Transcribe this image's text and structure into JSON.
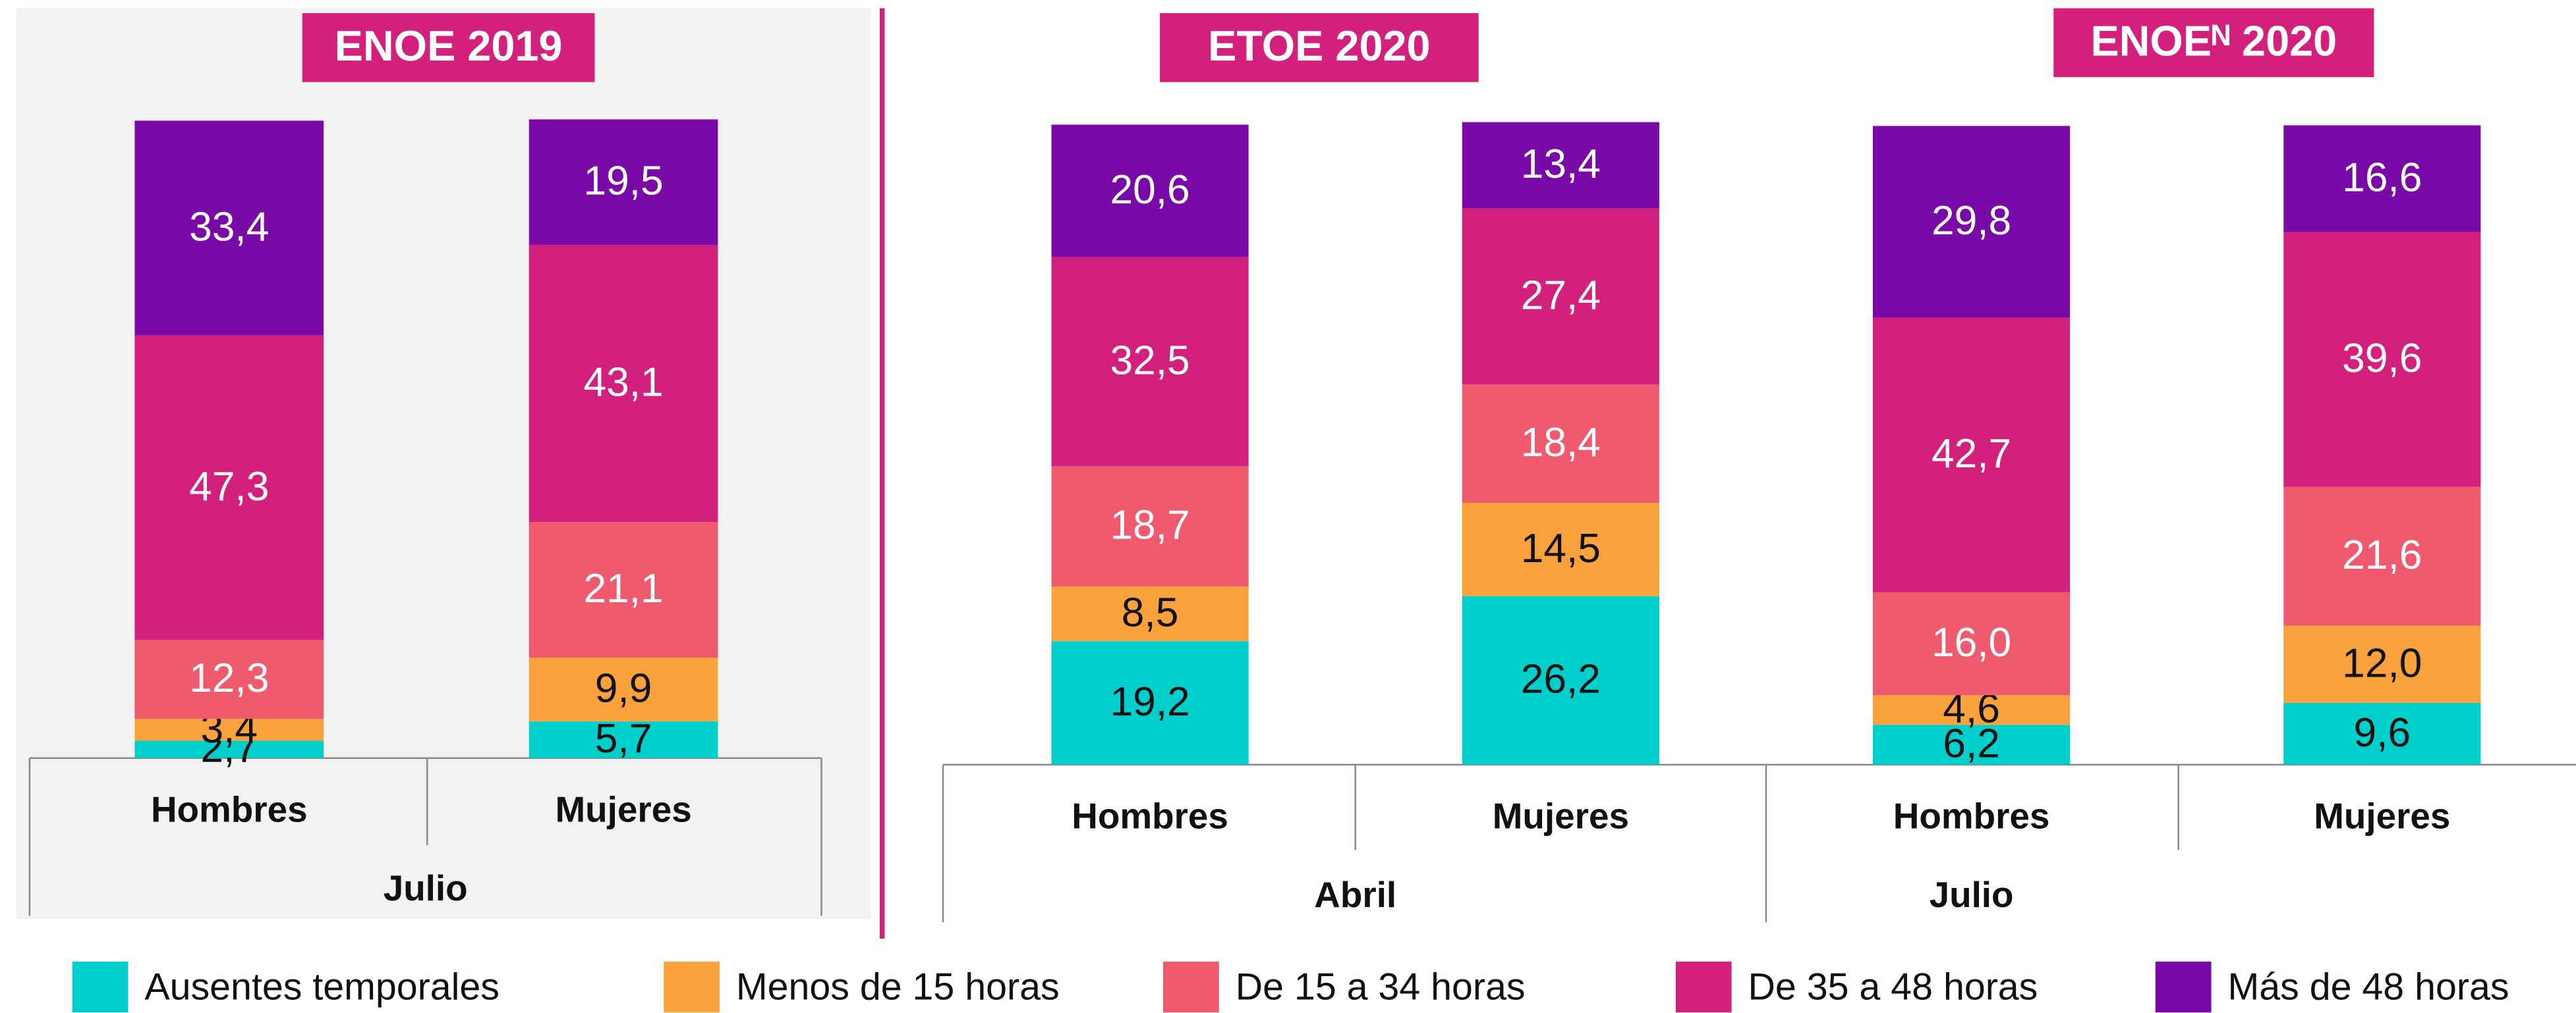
{
  "chart_data": {
    "type": "bar",
    "stacked": true,
    "ylim": [
      0,
      100
    ],
    "series": [
      {
        "name": "Ausentes temporales",
        "color": "#00cfcc"
      },
      {
        "name": "Menos de 15 horas",
        "color": "#f9a13a"
      },
      {
        "name": "De 15 a 34 horas",
        "color": "#f05a6e"
      },
      {
        "name": "De 35 a 48 horas",
        "color": "#d3207d"
      },
      {
        "name": "Más de 48 horas",
        "color": "#7a0aa8"
      }
    ],
    "panels": [
      {
        "title": "ENOE 2019",
        "period": "Julio",
        "categories": [
          "Hombres",
          "Mujeres"
        ],
        "series": [
          {
            "values": [
              2.7,
              5.7
            ],
            "value_labels": [
              "2,7",
              "5,7"
            ]
          },
          {
            "values": [
              3.4,
              9.9
            ],
            "value_labels": [
              "3,4",
              "9,9"
            ]
          },
          {
            "values": [
              12.3,
              21.1
            ],
            "value_labels": [
              "12,3",
              "21,1"
            ]
          },
          {
            "values": [
              47.3,
              43.1
            ],
            "value_labels": [
              "47,3",
              "43,1"
            ]
          },
          {
            "values": [
              33.4,
              19.5
            ],
            "value_labels": [
              "33,4",
              "19,5"
            ]
          }
        ]
      },
      {
        "title": "ETOE 2020",
        "period": "Abril",
        "categories": [
          "Hombres",
          "Mujeres"
        ],
        "series": [
          {
            "values": [
              19.2,
              26.2
            ],
            "value_labels": [
              "19,2",
              "26,2"
            ]
          },
          {
            "values": [
              8.5,
              14.5
            ],
            "value_labels": [
              "8,5",
              "14,5"
            ]
          },
          {
            "values": [
              18.7,
              18.4
            ],
            "value_labels": [
              "18,7",
              "18,4"
            ]
          },
          {
            "values": [
              32.5,
              27.4
            ],
            "value_labels": [
              "32,5",
              "27,4"
            ]
          },
          {
            "values": [
              20.6,
              13.4
            ],
            "value_labels": [
              "20,6",
              "13,4"
            ]
          }
        ]
      },
      {
        "title": "ENOEᴺ 2020",
        "period": "Julio",
        "categories": [
          "Hombres",
          "Mujeres"
        ],
        "series": [
          {
            "values": [
              6.2,
              9.6
            ],
            "value_labels": [
              "6,2",
              "9,6"
            ]
          },
          {
            "values": [
              4.6,
              12.0
            ],
            "value_labels": [
              "4,6",
              "12,0"
            ]
          },
          {
            "values": [
              16.0,
              21.6
            ],
            "value_labels": [
              "16,0",
              "21,6"
            ]
          },
          {
            "values": [
              42.7,
              39.6
            ],
            "value_labels": [
              "42,7",
              "39,6"
            ]
          },
          {
            "values": [
              29.8,
              16.6
            ],
            "value_labels": [
              "29,8",
              "16,6"
            ]
          }
        ]
      }
    ]
  }
}
